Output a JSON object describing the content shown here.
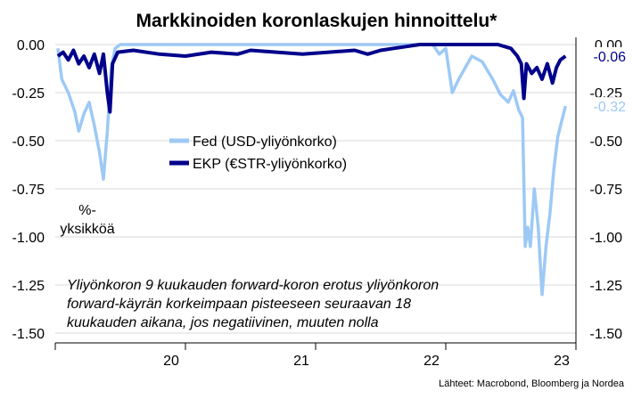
{
  "chart_data": {
    "type": "line",
    "title": "Markkinoiden koronlaskujen hinnoittelu*",
    "ylabel_lines": [
      "%-",
      "yksikköä"
    ],
    "ylim": [
      -1.55,
      0.0
    ],
    "yticks": [
      "0.00",
      "-0.25",
      "-0.50",
      "-0.75",
      "-1.00",
      "-1.25",
      "-1.50"
    ],
    "ytick_values": [
      0.0,
      -0.25,
      -0.5,
      -0.75,
      -1.0,
      -1.25,
      -1.5
    ],
    "xticks": [
      "20",
      "21",
      "22",
      "23"
    ],
    "xtick_values": [
      2020.5,
      2021.5,
      2022.5,
      2023.5
    ],
    "xlim": [
      2019.5,
      2023.5
    ],
    "grid": true,
    "legend_position": "center-left",
    "annotation": "Yliyönkoron 9 kuukauden forward-koron erotus yliyönkoron forward-käyrän korkeimpaan pisteeseen seuraavan 18 kuukauden aikana, jos negatiivinen, muuten nolla",
    "annotation_lines": [
      "Yliyönkoron 9 kuukauden forward-koron erotus yliyönkoron",
      "forward-käyrän korkeimpaan pisteeseen seuraavan 18",
      "kuukauden aikana, jos negatiivinen, muuten nolla"
    ],
    "source": "Lähteet: Macrobond, Bloomberg ja Nordea",
    "series": [
      {
        "name": "Fed (USD-yliyönkorko)",
        "color": "#9dc9f5",
        "last_value_label": "-0.32",
        "points": [
          [
            2019.52,
            -0.02
          ],
          [
            2019.55,
            -0.18
          ],
          [
            2019.6,
            -0.25
          ],
          [
            2019.65,
            -0.35
          ],
          [
            2019.68,
            -0.45
          ],
          [
            2019.72,
            -0.36
          ],
          [
            2019.76,
            -0.3
          ],
          [
            2019.8,
            -0.42
          ],
          [
            2019.84,
            -0.56
          ],
          [
            2019.87,
            -0.7
          ],
          [
            2019.9,
            -0.45
          ],
          [
            2019.93,
            -0.12
          ],
          [
            2019.96,
            -0.02
          ],
          [
            2020.0,
            0.0
          ],
          [
            2020.3,
            0.0
          ],
          [
            2020.6,
            0.0
          ],
          [
            2021.0,
            0.0
          ],
          [
            2021.5,
            0.0
          ],
          [
            2022.0,
            0.0
          ],
          [
            2022.4,
            0.0
          ],
          [
            2022.45,
            -0.05
          ],
          [
            2022.5,
            -0.02
          ],
          [
            2022.55,
            -0.25
          ],
          [
            2022.6,
            -0.18
          ],
          [
            2022.65,
            -0.12
          ],
          [
            2022.7,
            -0.06
          ],
          [
            2022.78,
            -0.09
          ],
          [
            2022.86,
            -0.18
          ],
          [
            2022.92,
            -0.26
          ],
          [
            2022.98,
            -0.3
          ],
          [
            2023.02,
            -0.24
          ],
          [
            2023.06,
            -0.34
          ],
          [
            2023.09,
            -0.38
          ],
          [
            2023.11,
            -1.05
          ],
          [
            2023.13,
            -0.95
          ],
          [
            2023.15,
            -1.05
          ],
          [
            2023.18,
            -0.75
          ],
          [
            2023.21,
            -0.95
          ],
          [
            2023.24,
            -1.3
          ],
          [
            2023.27,
            -1.05
          ],
          [
            2023.3,
            -0.88
          ],
          [
            2023.33,
            -0.65
          ],
          [
            2023.36,
            -0.48
          ],
          [
            2023.39,
            -0.4
          ],
          [
            2023.42,
            -0.32
          ]
        ]
      },
      {
        "name": "EKP (€STR-yliyönkorko)",
        "color": "#00008b",
        "last_value_label": "-0.06",
        "points": [
          [
            2019.52,
            -0.06
          ],
          [
            2019.56,
            -0.04
          ],
          [
            2019.6,
            -0.08
          ],
          [
            2019.64,
            -0.03
          ],
          [
            2019.68,
            -0.1
          ],
          [
            2019.72,
            -0.06
          ],
          [
            2019.76,
            -0.12
          ],
          [
            2019.8,
            -0.05
          ],
          [
            2019.84,
            -0.15
          ],
          [
            2019.87,
            -0.05
          ],
          [
            2019.9,
            -0.25
          ],
          [
            2019.92,
            -0.35
          ],
          [
            2019.94,
            -0.1
          ],
          [
            2019.98,
            -0.04
          ],
          [
            2020.1,
            -0.03
          ],
          [
            2020.3,
            -0.05
          ],
          [
            2020.5,
            -0.06
          ],
          [
            2020.7,
            -0.04
          ],
          [
            2020.9,
            -0.05
          ],
          [
            2021.0,
            -0.03
          ],
          [
            2021.2,
            -0.04
          ],
          [
            2021.4,
            -0.05
          ],
          [
            2021.6,
            -0.04
          ],
          [
            2021.8,
            -0.03
          ],
          [
            2021.9,
            -0.05
          ],
          [
            2022.0,
            -0.03
          ],
          [
            2022.1,
            -0.02
          ],
          [
            2022.2,
            -0.01
          ],
          [
            2022.3,
            0.0
          ],
          [
            2022.7,
            0.0
          ],
          [
            2022.9,
            0.0
          ],
          [
            2023.0,
            -0.02
          ],
          [
            2023.05,
            -0.06
          ],
          [
            2023.08,
            -0.1
          ],
          [
            2023.1,
            -0.28
          ],
          [
            2023.12,
            -0.1
          ],
          [
            2023.16,
            -0.15
          ],
          [
            2023.2,
            -0.12
          ],
          [
            2023.24,
            -0.18
          ],
          [
            2023.28,
            -0.1
          ],
          [
            2023.32,
            -0.2
          ],
          [
            2023.35,
            -0.12
          ],
          [
            2023.38,
            -0.08
          ],
          [
            2023.42,
            -0.06
          ]
        ]
      }
    ]
  }
}
